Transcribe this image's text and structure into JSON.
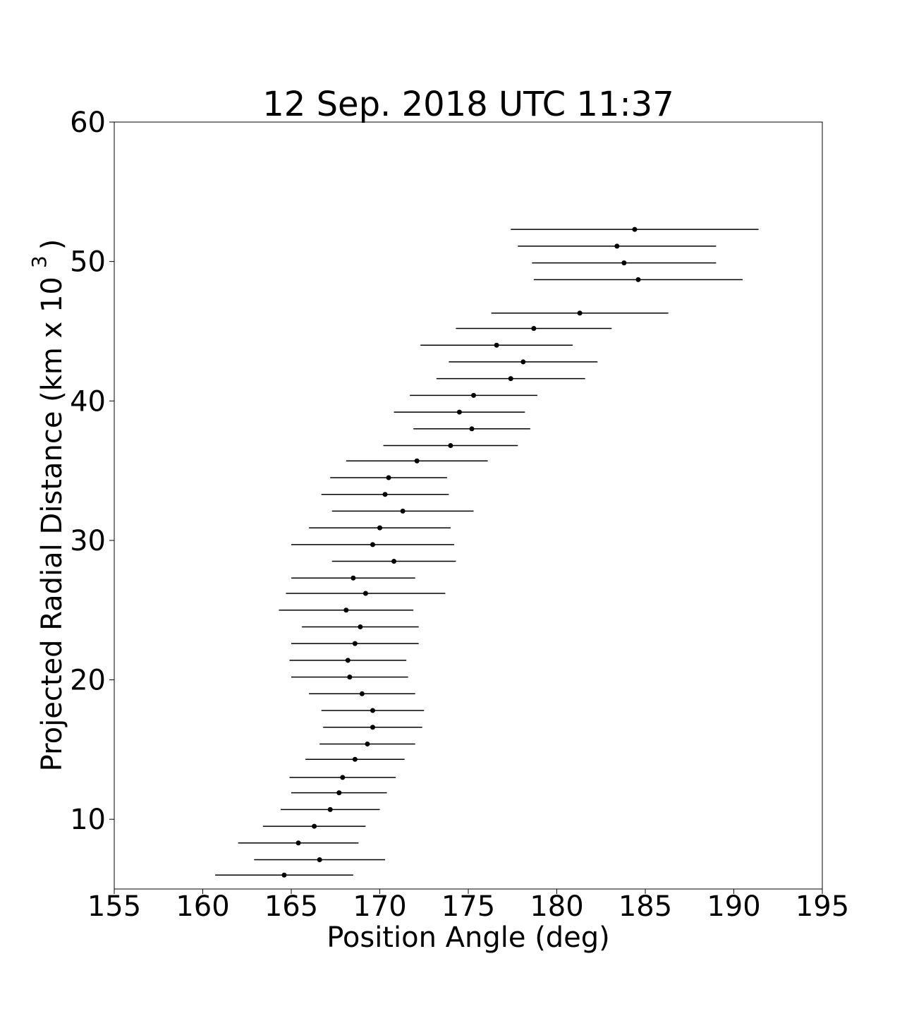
{
  "chart_data": {
    "type": "scatter",
    "title": "12 Sep. 2018 UTC 11:37",
    "xlabel": "Position Angle (deg)",
    "ylabel": {
      "text": "Projected Radial Distance (km x 10",
      "superscript": "3",
      "suffix": ")"
    },
    "color": "#000000",
    "x": [
      184.4,
      183.4,
      183.8,
      184.6,
      181.3,
      178.7,
      176.6,
      178.1,
      177.4,
      175.3,
      174.5,
      175.2,
      174.0,
      172.1,
      170.5,
      170.3,
      171.3,
      170.0,
      169.6,
      170.8,
      168.5,
      169.2,
      168.1,
      168.9,
      168.6,
      168.2,
      168.3,
      169.0,
      169.6,
      169.6,
      169.3,
      168.6,
      167.9,
      167.7,
      167.2,
      166.3,
      165.4,
      166.6,
      164.6
    ],
    "y": [
      52.3,
      51.1,
      49.9,
      48.7,
      46.3,
      45.2,
      44.0,
      42.8,
      41.6,
      40.4,
      39.2,
      38.0,
      36.8,
      35.7,
      34.5,
      33.3,
      32.1,
      30.9,
      29.7,
      28.5,
      27.3,
      26.2,
      25.0,
      23.8,
      22.6,
      21.4,
      20.2,
      19.0,
      17.8,
      16.6,
      15.4,
      14.3,
      13.0,
      11.9,
      10.7,
      9.5,
      8.3,
      7.1,
      6.0
    ],
    "xerr": [
      7.0,
      5.6,
      5.2,
      5.9,
      5.0,
      4.4,
      4.3,
      4.2,
      4.2,
      3.6,
      3.7,
      3.3,
      3.8,
      4.0,
      3.3,
      3.6,
      4.0,
      4.0,
      4.6,
      3.5,
      3.5,
      4.5,
      3.8,
      3.3,
      3.6,
      3.3,
      3.3,
      3.0,
      2.9,
      2.8,
      2.7,
      2.8,
      3.0,
      2.7,
      2.8,
      2.9,
      3.4,
      3.7,
      3.9
    ],
    "xlim": [
      155,
      195
    ],
    "ylim": [
      5,
      60
    ],
    "xticks": [
      155,
      160,
      165,
      170,
      175,
      180,
      185,
      190,
      195
    ],
    "yticks": [
      10,
      20,
      30,
      40,
      50,
      60
    ],
    "grid": false
  }
}
